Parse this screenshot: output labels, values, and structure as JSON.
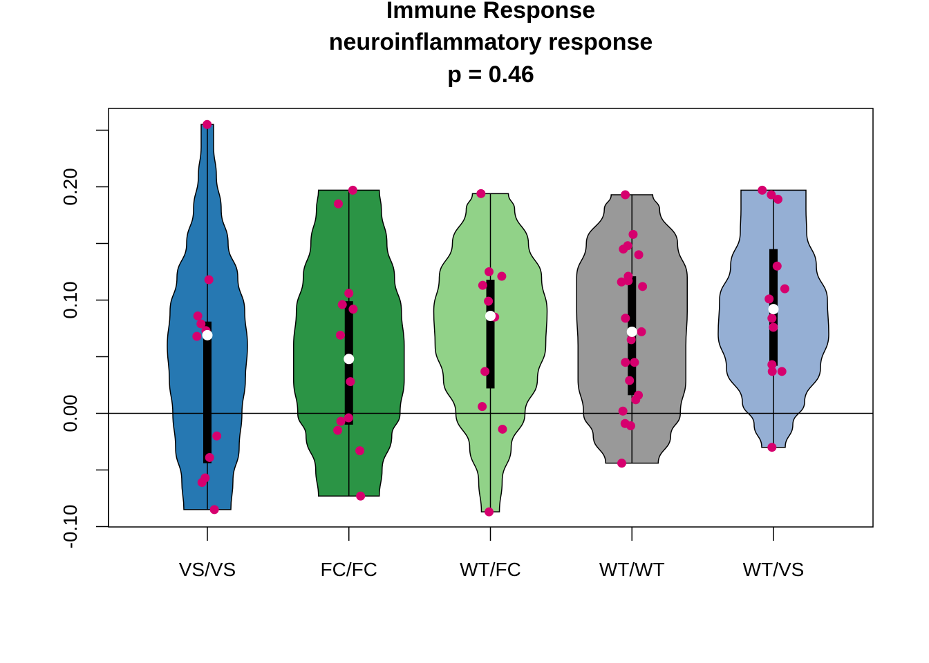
{
  "chart_data": {
    "type": "violin",
    "title": "Immune Response",
    "subtitle": "neuroinflammatory response",
    "annotation": "p = 0.46",
    "xlabel": "",
    "ylabel": "",
    "ylim": [
      -0.1,
      0.26
    ],
    "ytick_labels": [
      "-0.10",
      "0.00",
      "0.10",
      "0.20"
    ],
    "categories": [
      "VS/VS",
      "FC/FC",
      "WT/FC",
      "WT/WT",
      "WT/VS"
    ],
    "reference_line_y": 0.0,
    "grid": false,
    "series": [
      {
        "category": "VS/VS",
        "color": "#2678b2",
        "range": [
          -0.085,
          0.255
        ],
        "q1": -0.044,
        "median": 0.069,
        "q3": 0.081,
        "density": [
          [
            -0.085,
            0.34
          ],
          [
            -0.06,
            0.37
          ],
          [
            -0.03,
            0.46
          ],
          [
            0.0,
            0.5
          ],
          [
            0.03,
            0.55
          ],
          [
            0.06,
            0.58
          ],
          [
            0.09,
            0.54
          ],
          [
            0.12,
            0.44
          ],
          [
            0.15,
            0.3
          ],
          [
            0.18,
            0.2
          ],
          [
            0.21,
            0.13
          ],
          [
            0.235,
            0.09
          ],
          [
            0.255,
            0.09
          ]
        ],
        "points": [
          0.255,
          0.118,
          0.086,
          0.079,
          0.073,
          0.069,
          0.068,
          -0.02,
          -0.039,
          -0.057,
          -0.061,
          -0.085
        ]
      },
      {
        "category": "FC/FC",
        "color": "#2b9445",
        "range": [
          -0.073,
          0.197
        ],
        "q1": -0.01,
        "median": 0.048,
        "q3": 0.099,
        "density": [
          [
            -0.073,
            0.44
          ],
          [
            -0.05,
            0.48
          ],
          [
            -0.02,
            0.62
          ],
          [
            0.0,
            0.74
          ],
          [
            0.03,
            0.8
          ],
          [
            0.06,
            0.8
          ],
          [
            0.09,
            0.76
          ],
          [
            0.12,
            0.66
          ],
          [
            0.15,
            0.55
          ],
          [
            0.18,
            0.47
          ],
          [
            0.197,
            0.44
          ]
        ],
        "points": [
          0.197,
          0.185,
          0.106,
          0.096,
          0.092,
          0.069,
          0.028,
          -0.004,
          -0.007,
          -0.015,
          -0.033,
          -0.073
        ]
      },
      {
        "category": "WT/FC",
        "color": "#91d288",
        "range": [
          -0.087,
          0.194
        ],
        "q1": 0.022,
        "median": 0.086,
        "q3": 0.118,
        "density": [
          [
            -0.087,
            0.13
          ],
          [
            -0.06,
            0.17
          ],
          [
            -0.03,
            0.3
          ],
          [
            0.0,
            0.5
          ],
          [
            0.03,
            0.68
          ],
          [
            0.06,
            0.8
          ],
          [
            0.09,
            0.82
          ],
          [
            0.12,
            0.74
          ],
          [
            0.15,
            0.55
          ],
          [
            0.18,
            0.35
          ],
          [
            0.194,
            0.26
          ]
        ],
        "points": [
          0.194,
          0.125,
          0.121,
          0.113,
          0.099,
          0.086,
          0.085,
          0.037,
          0.006,
          -0.014,
          -0.087
        ]
      },
      {
        "category": "WT/WT",
        "color": "#999999",
        "range": [
          -0.044,
          0.193
        ],
        "q1": 0.016,
        "median": 0.072,
        "q3": 0.121,
        "density": [
          [
            -0.044,
            0.38
          ],
          [
            -0.02,
            0.56
          ],
          [
            0.0,
            0.7
          ],
          [
            0.03,
            0.78
          ],
          [
            0.06,
            0.78
          ],
          [
            0.09,
            0.8
          ],
          [
            0.12,
            0.8
          ],
          [
            0.15,
            0.66
          ],
          [
            0.18,
            0.4
          ],
          [
            0.193,
            0.3
          ]
        ],
        "points": [
          0.193,
          0.158,
          0.148,
          0.145,
          0.14,
          0.121,
          0.117,
          0.116,
          0.112,
          0.084,
          0.072,
          0.065,
          0.045,
          0.045,
          0.029,
          0.016,
          0.012,
          0.002,
          -0.009,
          -0.011,
          -0.044
        ]
      },
      {
        "category": "WT/VS",
        "color": "#95afd4",
        "range": [
          -0.03,
          0.197
        ],
        "q1": 0.042,
        "median": 0.092,
        "q3": 0.145,
        "density": [
          [
            -0.03,
            0.17
          ],
          [
            -0.01,
            0.28
          ],
          [
            0.01,
            0.45
          ],
          [
            0.04,
            0.68
          ],
          [
            0.07,
            0.8
          ],
          [
            0.1,
            0.78
          ],
          [
            0.13,
            0.62
          ],
          [
            0.16,
            0.48
          ],
          [
            0.18,
            0.47
          ],
          [
            0.197,
            0.47
          ]
        ],
        "points": [
          0.197,
          0.193,
          0.189,
          0.13,
          0.11,
          0.101,
          0.084,
          0.076,
          0.043,
          0.037,
          0.037,
          -0.03
        ]
      }
    ],
    "point_color": "#d6006e",
    "median_marker_color": "#ffffff",
    "box_color": "#000000"
  }
}
